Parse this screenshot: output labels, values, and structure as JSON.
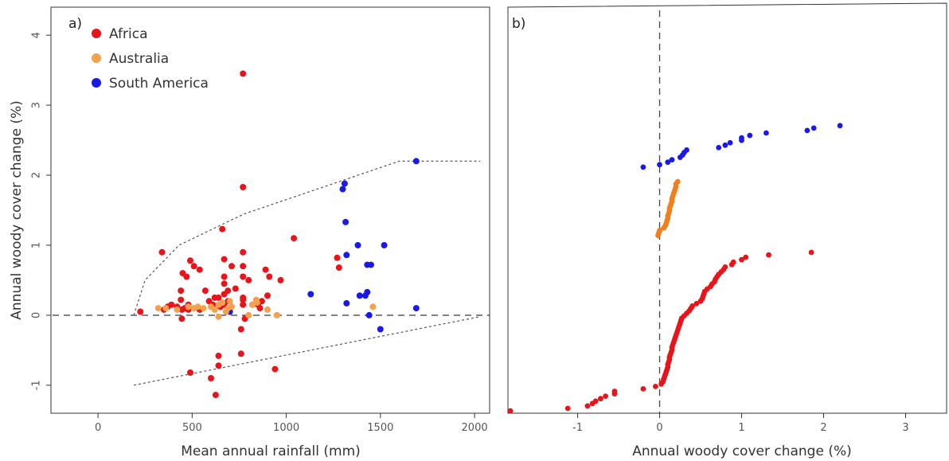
{
  "colors": {
    "Africa": "#e8141a",
    "Australia": "#f5a04c",
    "Australia_b": "#f07f1c",
    "South America": "#1a1ae8"
  },
  "chart_data": [
    {
      "panel": "a)",
      "type": "scatter",
      "xlabel": "Mean annual rainfall (mm)",
      "ylabel": "Annual woody cover change (%)",
      "xlim": [
        -250,
        2080
      ],
      "ylim": [
        -1.4,
        4.4
      ],
      "xticks": [
        "0",
        "500",
        "1000",
        "1500",
        "2000"
      ],
      "xtick_values": [
        0,
        500,
        1000,
        1500,
        2000
      ],
      "yticks": [
        "-1",
        "0",
        "1",
        "2",
        "3",
        "4"
      ],
      "ytick_values": [
        -1,
        0,
        1,
        2,
        3,
        4
      ],
      "legend": {
        "placement": "top-left",
        "entries": [
          "Africa",
          "Australia",
          "South America"
        ]
      },
      "reference_line_y": 0,
      "envelope_upper": [
        [
          190,
          0
        ],
        [
          250,
          0.5
        ],
        [
          430,
          1.0
        ],
        [
          700,
          1.35
        ],
        [
          780,
          1.45
        ],
        [
          1600,
          2.2
        ],
        [
          2030,
          2.2
        ]
      ],
      "envelope_lower": [
        [
          190,
          -1.0
        ],
        [
          2030,
          -0.02
        ]
      ],
      "series": [
        {
          "name": "Africa",
          "points": [
            [
              225,
              0.05
            ],
            [
              340,
              0.9
            ],
            [
              350,
              0.08
            ],
            [
              370,
              0.12
            ],
            [
              390,
              0.15
            ],
            [
              420,
              0.12
            ],
            [
              440,
              0.35
            ],
            [
              440,
              0.22
            ],
            [
              445,
              0.08
            ],
            [
              445,
              -0.05
            ],
            [
              450,
              0.6
            ],
            [
              460,
              0.1
            ],
            [
              470,
              0.55
            ],
            [
              480,
              0.15
            ],
            [
              480,
              0.08
            ],
            [
              490,
              -0.82
            ],
            [
              490,
              0.78
            ],
            [
              510,
              0.7
            ],
            [
              540,
              0.65
            ],
            [
              540,
              0.08
            ],
            [
              570,
              0.35
            ],
            [
              590,
              0.2
            ],
            [
              600,
              -0.9
            ],
            [
              610,
              0.15
            ],
            [
              620,
              0.25
            ],
            [
              625,
              -1.14
            ],
            [
              640,
              -0.58
            ],
            [
              640,
              0.25
            ],
            [
              640,
              -0.72
            ],
            [
              650,
              0.12
            ],
            [
              660,
              1.23
            ],
            [
              670,
              0.45
            ],
            [
              670,
              0.8
            ],
            [
              670,
              0.55
            ],
            [
              670,
              0.3
            ],
            [
              670,
              0.15
            ],
            [
              690,
              0.35
            ],
            [
              690,
              0.2
            ],
            [
              700,
              0.1
            ],
            [
              710,
              0.7
            ],
            [
              730,
              0.38
            ],
            [
              760,
              -0.55
            ],
            [
              760,
              -0.2
            ],
            [
              770,
              0.22
            ],
            [
              770,
              3.45
            ],
            [
              770,
              1.83
            ],
            [
              770,
              0.9
            ],
            [
              770,
              0.7
            ],
            [
              770,
              0.55
            ],
            [
              770,
              0.25
            ],
            [
              770,
              0.15
            ],
            [
              780,
              -0.05
            ],
            [
              800,
              0.5
            ],
            [
              820,
              0.15
            ],
            [
              850,
              0.15
            ],
            [
              860,
              0.1
            ],
            [
              870,
              0.2
            ],
            [
              890,
              0.65
            ],
            [
              900,
              0.28
            ],
            [
              910,
              0.55
            ],
            [
              940,
              -0.77
            ],
            [
              970,
              0.5
            ],
            [
              1040,
              1.1
            ],
            [
              1270,
              0.82
            ],
            [
              1280,
              0.68
            ]
          ]
        },
        {
          "name": "Australia",
          "points": [
            [
              320,
              0.1
            ],
            [
              360,
              0.1
            ],
            [
              420,
              0.08
            ],
            [
              480,
              0.12
            ],
            [
              510,
              0.1
            ],
            [
              530,
              0.12
            ],
            [
              560,
              0.1
            ],
            [
              600,
              0.12
            ],
            [
              620,
              0.08
            ],
            [
              640,
              0.15
            ],
            [
              640,
              -0.02
            ],
            [
              660,
              0.18
            ],
            [
              680,
              0.05
            ],
            [
              690,
              0.1
            ],
            [
              700,
              0.2
            ],
            [
              710,
              0.12
            ],
            [
              800,
              0.0
            ],
            [
              820,
              0.15
            ],
            [
              840,
              0.22
            ],
            [
              845,
              0.18
            ],
            [
              900,
              0.08
            ],
            [
              950,
              0.0
            ],
            [
              1460,
              0.12
            ]
          ]
        },
        {
          "name": "South America",
          "points": [
            [
              700,
              0.05
            ],
            [
              1130,
              0.3
            ],
            [
              1300,
              1.8
            ],
            [
              1310,
              1.88
            ],
            [
              1315,
              1.33
            ],
            [
              1320,
              0.86
            ],
            [
              1320,
              0.17
            ],
            [
              1380,
              1.0
            ],
            [
              1390,
              0.28
            ],
            [
              1420,
              0.28
            ],
            [
              1430,
              0.72
            ],
            [
              1430,
              0.33
            ],
            [
              1440,
              0.0
            ],
            [
              1450,
              0.72
            ],
            [
              1500,
              -0.2
            ],
            [
              1520,
              1.0
            ],
            [
              1690,
              2.2
            ],
            [
              1690,
              0.1
            ]
          ]
        }
      ]
    },
    {
      "panel": "b)",
      "type": "scatter",
      "xlabel": "Annual woody cover change (%)",
      "ylabel": "",
      "xlim": [
        -1.85,
        3.5
      ],
      "ylim": [
        0,
        163
      ],
      "xticks": [
        "-1",
        "0",
        "1",
        "2",
        "3"
      ],
      "xtick_values": [
        -1,
        0,
        1,
        2,
        3
      ],
      "reference_line_x": 0,
      "series": [
        {
          "name": "Africa",
          "points": [
            [
              -1.82,
              0
            ],
            [
              -1.12,
              1
            ],
            [
              -0.88,
              2
            ],
            [
              -0.82,
              3
            ],
            [
              -0.78,
              4
            ],
            [
              -0.72,
              5
            ],
            [
              -0.66,
              6
            ],
            [
              -0.55,
              7
            ],
            [
              -0.55,
              8
            ],
            [
              -0.2,
              9
            ],
            [
              -0.05,
              10
            ],
            [
              0.02,
              11
            ],
            [
              0.04,
              12
            ],
            [
              0.05,
              13
            ],
            [
              0.06,
              14
            ],
            [
              0.07,
              15
            ],
            [
              0.08,
              16
            ],
            [
              0.09,
              17
            ],
            [
              0.1,
              18
            ],
            [
              0.1,
              19
            ],
            [
              0.11,
              20
            ],
            [
              0.12,
              21
            ],
            [
              0.12,
              22
            ],
            [
              0.13,
              23
            ],
            [
              0.14,
              24
            ],
            [
              0.15,
              25
            ],
            [
              0.15,
              26
            ],
            [
              0.16,
              27
            ],
            [
              0.17,
              28
            ],
            [
              0.18,
              29
            ],
            [
              0.19,
              30
            ],
            [
              0.2,
              31
            ],
            [
              0.21,
              32
            ],
            [
              0.22,
              33
            ],
            [
              0.23,
              34
            ],
            [
              0.24,
              35
            ],
            [
              0.25,
              36
            ],
            [
              0.26,
              37
            ],
            [
              0.27,
              38
            ],
            [
              0.3,
              39
            ],
            [
              0.33,
              40
            ],
            [
              0.36,
              41
            ],
            [
              0.38,
              42
            ],
            [
              0.4,
              43
            ],
            [
              0.45,
              44
            ],
            [
              0.5,
              45
            ],
            [
              0.52,
              46
            ],
            [
              0.53,
              47
            ],
            [
              0.54,
              48
            ],
            [
              0.55,
              49
            ],
            [
              0.58,
              50
            ],
            [
              0.62,
              51
            ],
            [
              0.64,
              52
            ],
            [
              0.67,
              53
            ],
            [
              0.68,
              54
            ],
            [
              0.7,
              55
            ],
            [
              0.72,
              56
            ],
            [
              0.75,
              57
            ],
            [
              0.78,
              58
            ],
            [
              0.8,
              59
            ],
            [
              0.88,
              60
            ],
            [
              0.9,
              61
            ],
            [
              1.0,
              62
            ],
            [
              1.05,
              63
            ],
            [
              1.33,
              64
            ],
            [
              1.85,
              65
            ]
          ]
        },
        {
          "name": "Australia",
          "points": [
            [
              -0.02,
              72
            ],
            [
              -0.01,
              73
            ],
            [
              0.0,
              74
            ],
            [
              0.05,
              75
            ],
            [
              0.07,
              76
            ],
            [
              0.08,
              77
            ],
            [
              0.09,
              78
            ],
            [
              0.1,
              79
            ],
            [
              0.1,
              80
            ],
            [
              0.11,
              81
            ],
            [
              0.12,
              82
            ],
            [
              0.12,
              83
            ],
            [
              0.13,
              84
            ],
            [
              0.14,
              85
            ],
            [
              0.15,
              86
            ],
            [
              0.15,
              87
            ],
            [
              0.16,
              88
            ],
            [
              0.17,
              89
            ],
            [
              0.18,
              90
            ],
            [
              0.19,
              91
            ],
            [
              0.2,
              92
            ],
            [
              0.2,
              93
            ],
            [
              0.22,
              94
            ]
          ]
        },
        {
          "name": "South America",
          "points": [
            [
              -0.2,
              100
            ],
            [
              0.0,
              101
            ],
            [
              0.1,
              102
            ],
            [
              0.15,
              103
            ],
            [
              0.25,
              104
            ],
            [
              0.28,
              105
            ],
            [
              0.3,
              106
            ],
            [
              0.33,
              107
            ],
            [
              0.72,
              108
            ],
            [
              0.8,
              109
            ],
            [
              0.86,
              110
            ],
            [
              1.0,
              111
            ],
            [
              1.0,
              112
            ],
            [
              1.1,
              113
            ],
            [
              1.3,
              114
            ],
            [
              1.8,
              115
            ],
            [
              1.88,
              116
            ],
            [
              2.2,
              117
            ]
          ]
        }
      ]
    }
  ]
}
